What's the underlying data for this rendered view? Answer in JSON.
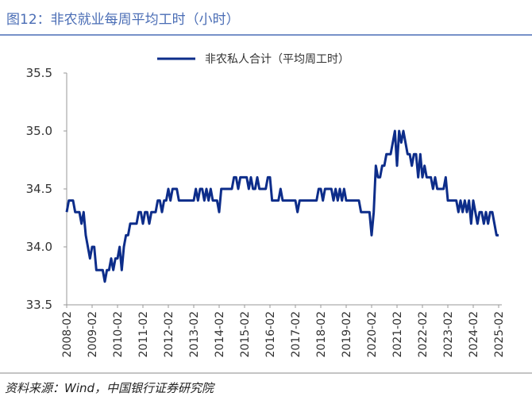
{
  "chart_data": {
    "type": "line",
    "title": "图12：非农就业每周平均工时（小时）",
    "source": "资料来源：Wind，中国银行证券研究院",
    "categories": [
      "2008-02",
      null,
      null,
      null,
      null,
      null,
      null,
      null,
      null,
      null,
      null,
      null,
      "2009-02",
      null,
      null,
      null,
      null,
      null,
      null,
      null,
      null,
      null,
      null,
      null,
      "2010-02",
      null,
      null,
      null,
      null,
      null,
      null,
      null,
      null,
      null,
      null,
      null,
      "2011-02",
      null,
      null,
      null,
      null,
      null,
      null,
      null,
      null,
      null,
      null,
      null,
      "2012-02",
      null,
      null,
      null,
      null,
      null,
      null,
      null,
      null,
      null,
      null,
      null,
      "2013-02",
      null,
      null,
      null,
      null,
      null,
      null,
      null,
      null,
      null,
      null,
      null,
      "2014-02",
      null,
      null,
      null,
      null,
      null,
      null,
      null,
      null,
      null,
      null,
      null,
      "2015-02",
      null,
      null,
      null,
      null,
      null,
      null,
      null,
      null,
      null,
      null,
      null,
      "2016-02",
      null,
      null,
      null,
      null,
      null,
      null,
      null,
      null,
      null,
      null,
      null,
      "2017-02",
      null,
      null,
      null,
      null,
      null,
      null,
      null,
      null,
      null,
      null,
      null,
      "2018-02",
      null,
      null,
      null,
      null,
      null,
      null,
      null,
      null,
      null,
      null,
      null,
      "2019-02",
      null,
      null,
      null,
      null,
      null,
      null,
      null,
      null,
      null,
      null,
      null,
      "2020-02",
      null,
      null,
      null,
      null,
      null,
      null,
      null,
      null,
      null,
      null,
      null,
      "2021-02",
      null,
      null,
      null,
      null,
      null,
      null,
      null,
      null,
      null,
      null,
      null,
      "2022-02",
      null,
      null,
      null,
      null,
      null,
      null,
      null,
      null,
      null,
      null,
      null,
      "2023-02",
      null,
      null,
      null,
      null,
      null,
      null,
      null,
      null,
      null,
      null,
      null,
      "2024-02",
      null,
      null,
      null,
      null,
      null,
      null,
      null,
      null,
      null,
      null,
      null,
      "2025-02"
    ],
    "series": [
      {
        "name": "非农私人合计（平均周工时）",
        "color": "#0d2d8a",
        "values": [
          34.3,
          34.4,
          34.4,
          34.4,
          34.3,
          34.3,
          34.3,
          34.2,
          34.3,
          34.1,
          34.0,
          33.9,
          34.0,
          34.0,
          33.8,
          33.8,
          33.8,
          33.8,
          33.7,
          33.8,
          33.8,
          33.9,
          33.8,
          33.9,
          33.9,
          34.0,
          33.8,
          34.0,
          34.1,
          34.1,
          34.2,
          34.2,
          34.2,
          34.2,
          34.3,
          34.3,
          34.2,
          34.3,
          34.3,
          34.2,
          34.3,
          34.3,
          34.3,
          34.4,
          34.4,
          34.3,
          34.4,
          34.4,
          34.5,
          34.4,
          34.5,
          34.5,
          34.5,
          34.4,
          34.4,
          34.4,
          34.4,
          34.4,
          34.4,
          34.4,
          34.4,
          34.5,
          34.4,
          34.5,
          34.5,
          34.4,
          34.5,
          34.4,
          34.5,
          34.4,
          34.4,
          34.4,
          34.3,
          34.5,
          34.5,
          34.5,
          34.5,
          34.5,
          34.5,
          34.6,
          34.6,
          34.5,
          34.6,
          34.6,
          34.6,
          34.6,
          34.5,
          34.6,
          34.5,
          34.5,
          34.6,
          34.5,
          34.5,
          34.5,
          34.5,
          34.6,
          34.6,
          34.4,
          34.4,
          34.4,
          34.4,
          34.5,
          34.4,
          34.4,
          34.4,
          34.4,
          34.4,
          34.4,
          34.4,
          34.3,
          34.4,
          34.4,
          34.4,
          34.4,
          34.4,
          34.4,
          34.4,
          34.4,
          34.4,
          34.5,
          34.5,
          34.4,
          34.5,
          34.5,
          34.5,
          34.5,
          34.4,
          34.5,
          34.4,
          34.5,
          34.4,
          34.5,
          34.4,
          34.4,
          34.4,
          34.4,
          34.4,
          34.4,
          34.4,
          34.3,
          34.3,
          34.3,
          34.3,
          34.3,
          34.1,
          34.3,
          34.7,
          34.6,
          34.6,
          34.7,
          34.7,
          34.8,
          34.8,
          34.8,
          34.9,
          35.0,
          34.7,
          35.0,
          34.9,
          35.0,
          34.9,
          34.8,
          34.8,
          34.7,
          34.8,
          34.8,
          34.6,
          34.8,
          34.6,
          34.7,
          34.6,
          34.6,
          34.6,
          34.5,
          34.6,
          34.5,
          34.5,
          34.5,
          34.5,
          34.6,
          34.4,
          34.4,
          34.4,
          34.4,
          34.4,
          34.3,
          34.4,
          34.3,
          34.4,
          34.3,
          34.4,
          34.2,
          34.4,
          34.3,
          34.2,
          34.3,
          34.3,
          34.2,
          34.3,
          34.2,
          34.3,
          34.3,
          34.2,
          34.1,
          34.1
        ]
      }
    ],
    "ylim": [
      33.5,
      35.5
    ],
    "yticks": [
      33.5,
      {
        "value": 34,
        "label": "34.0"
      },
      34.5,
      {
        "value": 35,
        "label": "35.0"
      },
      35.5
    ],
    "grid": false,
    "legend": "top"
  }
}
